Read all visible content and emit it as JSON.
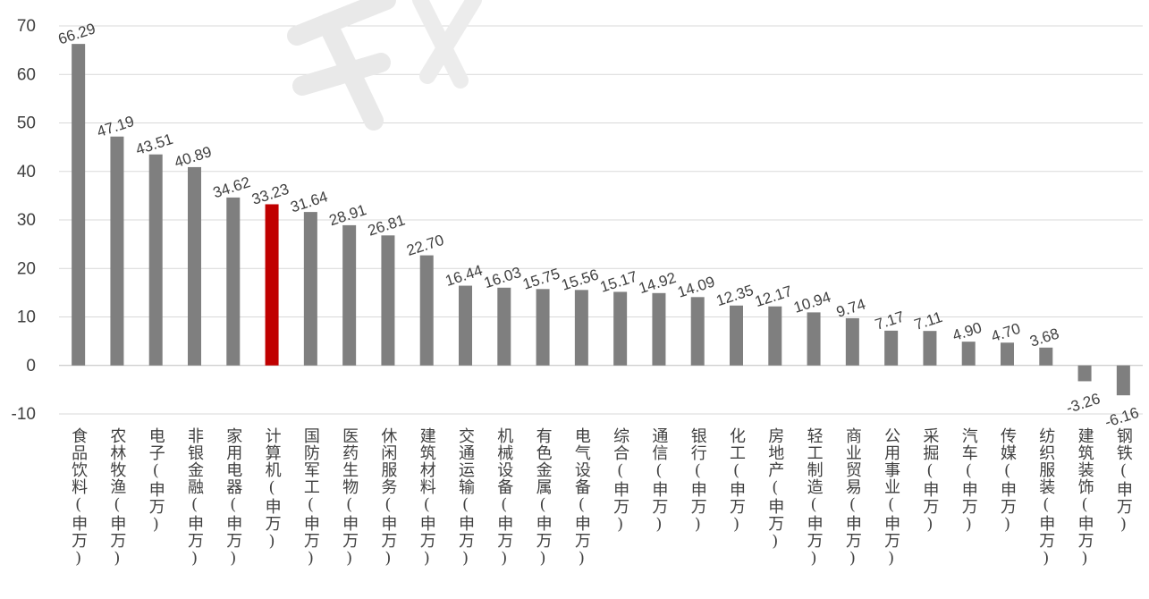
{
  "chart_data": {
    "type": "bar",
    "categories": [
      "食品饮料(申万)",
      "农林牧渔(申万)",
      "电子(申万)",
      "非银金融(申万)",
      "家用电器(申万)",
      "计算机(申万)",
      "国防军工(申万)",
      "医药生物(申万)",
      "休闲服务(申万)",
      "建筑材料(申万)",
      "交通运输(申万)",
      "机械设备(申万)",
      "有色金属(申万)",
      "电气设备(申万)",
      "综合(申万)",
      "通信(申万)",
      "银行(申万)",
      "化工(申万)",
      "房地产(申万)",
      "轻工制造(申万)",
      "商业贸易(申万)",
      "公用事业(申万)",
      "采掘(申万)",
      "汽车(申万)",
      "传媒(申万)",
      "纺织服装(申万)",
      "建筑装饰(申万)",
      "钢铁(申万)"
    ],
    "values": [
      66.29,
      47.19,
      43.51,
      40.89,
      34.62,
      33.23,
      31.64,
      28.91,
      26.81,
      22.7,
      16.44,
      16.03,
      15.75,
      15.56,
      15.17,
      14.92,
      14.09,
      12.35,
      12.17,
      10.94,
      9.74,
      7.17,
      7.11,
      4.9,
      4.7,
      3.68,
      -3.26,
      -6.16
    ],
    "value_labels": [
      "66.29",
      "47.19",
      "43.51",
      "40.89",
      "34.62",
      "33.23",
      "31.64",
      "28.91",
      "26.81",
      "22.70",
      "16.44",
      "16.03",
      "15.75",
      "15.56",
      "15.17",
      "14.92",
      "14.09",
      "12.35",
      "12.17",
      "10.94",
      "9.74",
      "7.17",
      "7.11",
      "4.90",
      "4.70",
      "3.68",
      "-3.26",
      "-6.16"
    ],
    "highlight_category": "计算机(申万)",
    "colors": {
      "bar": "#7f7f7f",
      "highlight": "#c00000",
      "grid": "#d9d9d9",
      "text": "#404040"
    },
    "yticks": [
      70,
      60,
      50,
      40,
      30,
      20,
      10,
      0,
      -10
    ],
    "ylim": [
      -10,
      70
    ],
    "grid": true,
    "legend": "none",
    "title": "",
    "xlabel": "",
    "ylabel": ""
  }
}
